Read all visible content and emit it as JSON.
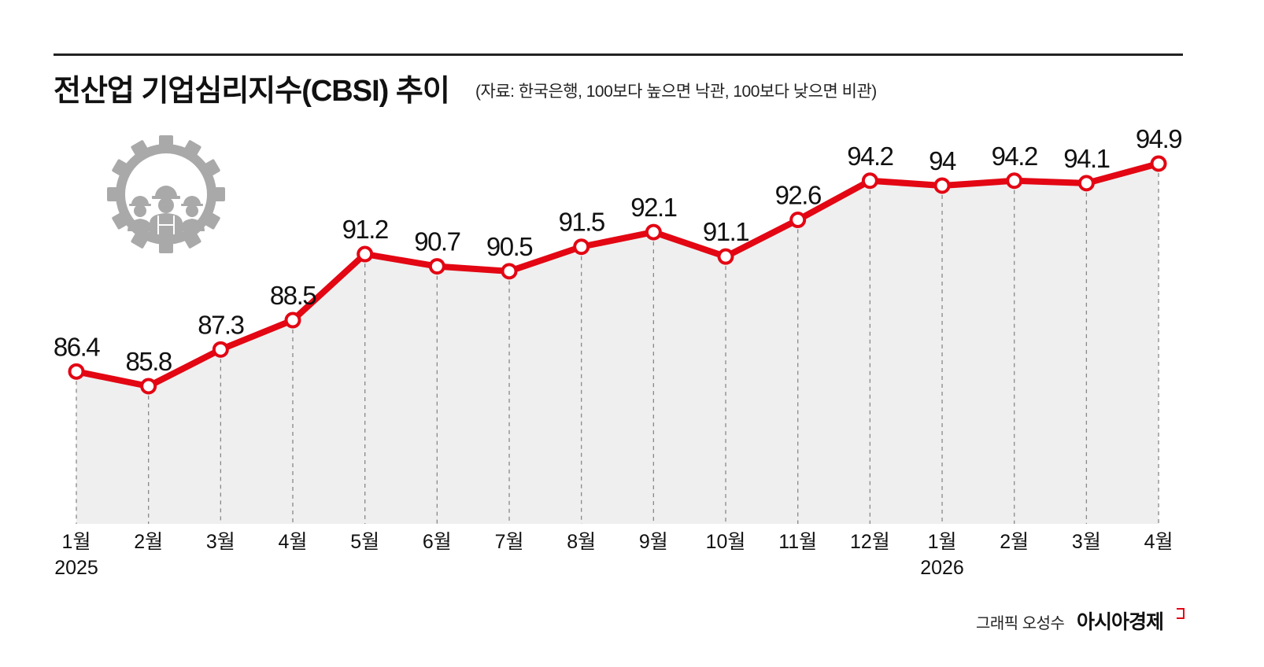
{
  "header": {
    "title": "전산업 기업심리지수(CBSI) 추이",
    "subtitle": "(자료: 한국은행, 100보다 높으면 낙관, 100보다 낮으면 비관)"
  },
  "footer": {
    "credit": "그래픽 오성수",
    "brand": "아시아경제"
  },
  "icon": "gear-workers-icon",
  "colors": {
    "line": "#e30613",
    "area": "#efefef",
    "gridline": "#888888",
    "text": "#111111"
  },
  "chart_data": {
    "type": "line",
    "title": "전산업 기업심리지수(CBSI) 추이",
    "subtitle": "(자료: 한국은행, 100보다 높으면 낙관, 100보다 낮으면 비관)",
    "xlabel": "",
    "ylabel": "",
    "categories": [
      "1월 2025",
      "2월",
      "3월",
      "4월",
      "5월",
      "6월",
      "7월",
      "8월",
      "9월",
      "10월",
      "11월",
      "12월",
      "1월 2026",
      "2월",
      "3월",
      "4월"
    ],
    "x_tick_labels": [
      "1월",
      "2월",
      "3월",
      "4월",
      "5월",
      "6월",
      "7월",
      "8월",
      "9월",
      "10월",
      "11월",
      "12월",
      "1월",
      "2월",
      "3월",
      "4월"
    ],
    "year_labels": [
      {
        "index": 0,
        "label": "2025"
      },
      {
        "index": 12,
        "label": "2026"
      }
    ],
    "series": [
      {
        "name": "CBSI",
        "values": [
          86.4,
          85.8,
          87.3,
          88.5,
          91.2,
          90.7,
          90.5,
          91.5,
          92.1,
          91.1,
          92.6,
          94.2,
          94,
          94.2,
          94.1,
          94.9
        ],
        "value_labels": [
          "86.4",
          "85.8",
          "87.3",
          "88.5",
          "91.2",
          "90.7",
          "90.5",
          "91.5",
          "92.1",
          "91.1",
          "92.6",
          "94.2",
          "94",
          "94.2",
          "94.1",
          "94.9"
        ]
      }
    ],
    "grid": false,
    "vertical_dashed_guides": true,
    "area_fill": true,
    "legend": null
  }
}
